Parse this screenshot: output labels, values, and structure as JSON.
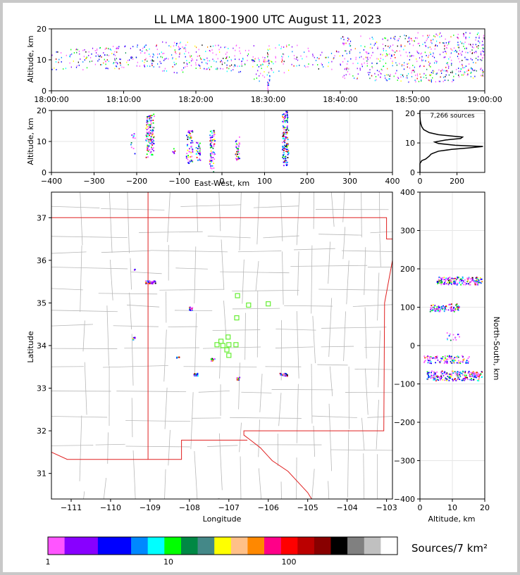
{
  "title": "LL LMA 1800-1900 UTC August 11, 2023",
  "chart_data": [
    {
      "id": "time-height",
      "type": "heatmap",
      "xlabel": "",
      "ylabel": "Altitude, km",
      "x_tick_labels": [
        "18:00:00",
        "18:10:00",
        "18:20:00",
        "18:30:00",
        "18:40:00",
        "18:50:00",
        "19:00:00"
      ],
      "y_ticks": [
        0,
        10,
        20
      ],
      "xlim_minutes": [
        0,
        60
      ],
      "ylim": [
        0,
        20
      ],
      "clusters": [
        {
          "t": [
            0,
            2
          ],
          "z": [
            7,
            13
          ],
          "n": 15
        },
        {
          "t": [
            2,
            6
          ],
          "z": [
            7,
            14
          ],
          "n": 40
        },
        {
          "t": [
            6,
            10
          ],
          "z": [
            7,
            15
          ],
          "n": 70
        },
        {
          "t": [
            10,
            14
          ],
          "z": [
            8,
            15
          ],
          "n": 55
        },
        {
          "t": [
            14,
            19
          ],
          "z": [
            6,
            16
          ],
          "n": 80
        },
        {
          "t": [
            19,
            24
          ],
          "z": [
            7,
            15
          ],
          "n": 70
        },
        {
          "t": [
            24,
            28
          ],
          "z": [
            6,
            15
          ],
          "n": 60
        },
        {
          "t": [
            28,
            30
          ],
          "z": [
            3,
            12
          ],
          "n": 35
        },
        {
          "t": [
            29.8,
            30.2
          ],
          "z": [
            0,
            15
          ],
          "n": 35
        },
        {
          "t": [
            30,
            34
          ],
          "z": [
            6,
            15
          ],
          "n": 40
        },
        {
          "t": [
            34,
            38
          ],
          "z": [
            7,
            14
          ],
          "n": 30
        },
        {
          "t": [
            38,
            40
          ],
          "z": [
            7,
            13
          ],
          "n": 15
        },
        {
          "t": [
            40,
            44
          ],
          "z": [
            4,
            18
          ],
          "n": 80
        },
        {
          "t": [
            44,
            48
          ],
          "z": [
            3,
            18
          ],
          "n": 110
        },
        {
          "t": [
            48,
            52
          ],
          "z": [
            3,
            19
          ],
          "n": 110
        },
        {
          "t": [
            52,
            56
          ],
          "z": [
            3,
            19
          ],
          "n": 130
        },
        {
          "t": [
            56,
            60
          ],
          "z": [
            4,
            19
          ],
          "n": 150
        }
      ]
    },
    {
      "id": "ew-height",
      "type": "heatmap",
      "xlabel": "East-West, km",
      "ylabel": "Altitude, km",
      "x_ticks": [
        -400,
        -300,
        -200,
        -100,
        0,
        100,
        200,
        300,
        400
      ],
      "y_ticks": [
        0,
        10,
        20
      ],
      "xlim": [
        -400,
        400
      ],
      "ylim": [
        0,
        20
      ],
      "columns": [
        {
          "x": [
            -215,
            -205
          ],
          "z": [
            6,
            14
          ],
          "n": 12
        },
        {
          "x": [
            -180,
            -160
          ],
          "z": [
            5,
            19
          ],
          "n": 120
        },
        {
          "x": [
            -120,
            -110
          ],
          "z": [
            6,
            8
          ],
          "n": 6
        },
        {
          "x": [
            -85,
            -70
          ],
          "z": [
            3,
            14
          ],
          "n": 60
        },
        {
          "x": [
            -62,
            -52
          ],
          "z": [
            4,
            10
          ],
          "n": 30
        },
        {
          "x": [
            -30,
            -18
          ],
          "z": [
            0,
            14
          ],
          "n": 70
        },
        {
          "x": [
            30,
            40
          ],
          "z": [
            3,
            12
          ],
          "n": 35
        },
        {
          "x": [
            140,
            155
          ],
          "z": [
            2,
            20
          ],
          "n": 140
        }
      ]
    },
    {
      "id": "alt-histogram",
      "type": "line",
      "annotation": "7,266 sources",
      "x_ticks": [
        0,
        200
      ],
      "y_ticks": [
        0,
        10,
        20
      ],
      "xlim": [
        0,
        350
      ],
      "ylim": [
        0,
        21
      ],
      "profile": [
        [
          0,
          0
        ],
        [
          0,
          3
        ],
        [
          10,
          4
        ],
        [
          30,
          4.5
        ],
        [
          50,
          5.5
        ],
        [
          60,
          6.2
        ],
        [
          70,
          6.5
        ],
        [
          100,
          7.2
        ],
        [
          170,
          7.8
        ],
        [
          260,
          8.3
        ],
        [
          340,
          8.8
        ],
        [
          190,
          9.2
        ],
        [
          100,
          9.8
        ],
        [
          80,
          10.3
        ],
        [
          140,
          11
        ],
        [
          220,
          11.5
        ],
        [
          230,
          12
        ],
        [
          180,
          12.3
        ],
        [
          100,
          12.8
        ],
        [
          50,
          13.5
        ],
        [
          20,
          14.5
        ],
        [
          10,
          15.5
        ],
        [
          5,
          16.5
        ],
        [
          2,
          17.5
        ],
        [
          0,
          19
        ],
        [
          0,
          21
        ]
      ]
    },
    {
      "id": "plan-view",
      "type": "heatmap",
      "xlabel": "Longitude",
      "ylabel": "Latitude",
      "x_tick_labels": [
        "−111",
        "−110",
        "−109",
        "−108",
        "−107",
        "−106",
        "−105",
        "−104",
        "−103"
      ],
      "y_tick_labels": [
        "31",
        "32",
        "33",
        "34",
        "35",
        "36",
        "37"
      ],
      "xlim": [
        -111.5,
        -102.85
      ],
      "ylim": [
        30.4,
        37.6
      ],
      "clusters": [
        {
          "lon": -109.0,
          "lat": 35.5,
          "w": 0.25,
          "h": 0.07,
          "n": 40
        },
        {
          "lon": -107.98,
          "lat": 34.88,
          "w": 0.1,
          "h": 0.08,
          "n": 15
        },
        {
          "lon": -109.42,
          "lat": 34.18,
          "w": 0.06,
          "h": 0.06,
          "n": 8
        },
        {
          "lon": -108.3,
          "lat": 33.73,
          "w": 0.08,
          "h": 0.03,
          "n": 6
        },
        {
          "lon": -107.42,
          "lat": 33.68,
          "w": 0.12,
          "h": 0.06,
          "n": 12
        },
        {
          "lon": -107.85,
          "lat": 33.33,
          "w": 0.1,
          "h": 0.06,
          "n": 10
        },
        {
          "lon": -106.78,
          "lat": 33.23,
          "w": 0.08,
          "h": 0.08,
          "n": 10
        },
        {
          "lon": -105.62,
          "lat": 33.33,
          "w": 0.2,
          "h": 0.06,
          "n": 35
        },
        {
          "lon": -109.4,
          "lat": 35.8,
          "w": 0.03,
          "h": 0.03,
          "n": 2
        }
      ],
      "stations": [
        [
          -106.78,
          35.17
        ],
        [
          -106.5,
          34.95
        ],
        [
          -106.0,
          34.98
        ],
        [
          -106.8,
          34.65
        ],
        [
          -107.02,
          34.2
        ],
        [
          -107.2,
          34.1
        ],
        [
          -107.15,
          34.0
        ],
        [
          -107.0,
          34.02
        ],
        [
          -107.3,
          34.02
        ],
        [
          -106.82,
          34.02
        ],
        [
          -107.05,
          33.9
        ],
        [
          -107.0,
          33.77
        ]
      ]
    },
    {
      "id": "alt-ns",
      "type": "heatmap",
      "xlabel": "Altitude, km",
      "ylabel": "North-South, km",
      "x_ticks": [
        0,
        10,
        20
      ],
      "y_ticks": [
        -400,
        -300,
        -200,
        -100,
        0,
        100,
        200,
        300,
        400
      ],
      "xlim": [
        0,
        20
      ],
      "ylim": [
        -400,
        400
      ],
      "bands": [
        {
          "z": [
            5,
            19
          ],
          "y": [
            160,
            180
          ],
          "n": 160
        },
        {
          "z": [
            3,
            12
          ],
          "y": [
            90,
            110
          ],
          "n": 90
        },
        {
          "z": [
            8,
            12
          ],
          "y": [
            15,
            35
          ],
          "n": 15
        },
        {
          "z": [
            1,
            15
          ],
          "y": [
            -45,
            -25
          ],
          "n": 110
        },
        {
          "z": [
            2,
            19
          ],
          "y": [
            -90,
            -65
          ],
          "n": 220
        }
      ]
    }
  ],
  "colorbar": {
    "label": "Sources/7 km²",
    "tick_labels": [
      "1",
      "10",
      "100"
    ],
    "colors": [
      "#ff55ff",
      "#8800ff",
      "#8800ff",
      "#0000ff",
      "#0000ff",
      "#0088ff",
      "#00ffff",
      "#00ff00",
      "#008844",
      "#448888",
      "#ffff00",
      "#ffc088",
      "#ff8800",
      "#ff0088",
      "#ff0000",
      "#bb0000",
      "#880000",
      "#000000",
      "#808080",
      "#c0c0c0",
      "#ffffff"
    ]
  }
}
